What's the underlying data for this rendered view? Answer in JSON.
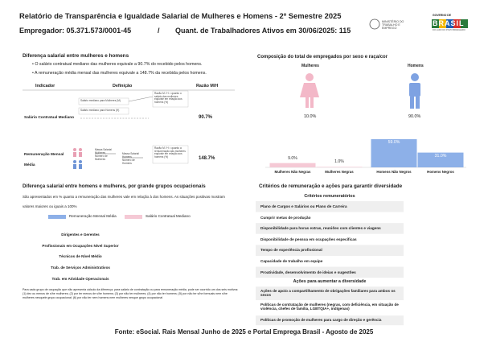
{
  "header": {
    "title": "Relatório de Transparência e Igualdade Salarial de Mulheres e Homens - 2º Semestre 2025",
    "employer": "Empregador: 05.371.573/0001-45",
    "separator": "/",
    "workers": "Quant. de Trabalhadores Ativos em 30/06/2025: 115",
    "ministry": "MINISTÉRIO DO TRABALHO E EMPREGO",
    "gov_top": "GOVERNO DE",
    "gov_name": "BRASIL",
    "gov_slogan": "DO LADO DO POVO BRASILEIRO"
  },
  "pay_gap": {
    "title": "Diferença salarial entre mulheres e homens",
    "bullets": [
      "O salário contratual mediano das mulheres equivale a 90.7% do recebido pelos homens.",
      "A remuneração média mensal das mulheres equivale a 148.7% da recebida pelos homens."
    ],
    "columns": [
      "Indicador",
      "Definição",
      "Razão M/H"
    ],
    "rows": [
      {
        "indicator": "Salário Contratual Mediano",
        "ratio": "90.7%",
        "definition": [
          "Salário mediano para Mulheres (M)",
          "Salário mediano para Homens (H)",
          "Razão M / H = quanto o salário das mulheres equivale em relação aos homens (%)"
        ]
      },
      {
        "indicator": "Remuneração Mensal Média",
        "ratio": "148.7%",
        "definition": [
          "Massa Salarial Mulheres",
          "Número de Mulheres",
          "Massa Salarial Homens",
          "Número de Homens",
          "Razão M / H = quanto a remuneração das mulheres equivale em relação aos homens (%)"
        ]
      }
    ]
  },
  "composition": {
    "title": "Composição do total de empregados por sexo e raça/cor",
    "women": {
      "label": "Mulheres",
      "share": "10.0%"
    },
    "men": {
      "label": "Homens",
      "share": "90.0%"
    }
  },
  "chart_data": {
    "type": "bar",
    "categories": [
      "Mulheres Não Negras",
      "Mulheres Negras",
      "Homens Não Negros",
      "Homens Negros"
    ],
    "values": [
      9.0,
      1.0,
      59.0,
      31.0
    ],
    "value_labels": [
      "9.0%",
      "1.0%",
      "59.0%",
      "31.0%"
    ],
    "colors": [
      "#f5c9d5",
      "#f5c9d5",
      "#8db0e8",
      "#8db0e8"
    ]
  },
  "occupational": {
    "title": "Diferença salarial entre homens e mulheres, por grande grupos ocupacionais",
    "description": "São apresentados em % quanto a remuneração das mulheres vale em relação à dos homens. As situações positivas mostram valores maiores ou iguais a 100%",
    "legend": [
      {
        "name": "Remuneração Mensal Média",
        "color": "#8db0e8"
      },
      {
        "name": "Salário Contratual Mediano",
        "color": "#f5c9d5"
      }
    ],
    "groups": [
      "Dirigentes e Gerentes",
      "Profissionais em Ocupações Nível Superior",
      "Técnicos de Nível Médio",
      "Trab. de Serviços Administrativos",
      "Trab. em Atividade Operacionais"
    ],
    "footnote": "Para cada grupo de ocupação que não apresenta cálculo da diferença, para salário de contratação ou para remuneração média, pode ser ocorrido um dos seis motivos:(1) dez ou menos de s/he mulheres; (2) por ter menos de s/he homens; (3) por não ter mulheres; (4) por não ter homens; (5) por não ter s/he formuais nem s/he mulheres nesquele grupo ocupacional; (6) por não ter nem homens nem mulheres nesque grupo ocupacional"
  },
  "criteria": {
    "title": "Critérios de remuneração e ações para garantir diversidade",
    "remuneration_header": "Critérios remuneratórios",
    "remuneration": [
      "Plano de Cargos e Salários ou Plano de Carreira",
      "Cumprir metas de produção",
      "Disponibilidade para horas extras, reuniões com clientes e viagens",
      "Disponibilidade de pessoa em ocupações específicas",
      "Tempo de experiência profissional",
      "Capacidade de trabalho em equipe",
      "Proatividade, desenvolvimento de ideias e sugestões"
    ],
    "diversity_header": "Ações para aumentar a diversidade",
    "diversity": [
      "Ações de apoio a compartilhamento de obrigações familiares para ambos os sexos",
      "Políticas de contratação de mulheres (negras, com deficiência, em situação de violência, chefes de família, LGBTQIA+, indígenas)",
      "Políticas de promoção de mulheres para cargo de direção e gerência"
    ]
  },
  "footer": "Fonte: eSocial. Rais Mensal Junho de 2025 e Portal Emprega Brasil - Agosto de 2025"
}
